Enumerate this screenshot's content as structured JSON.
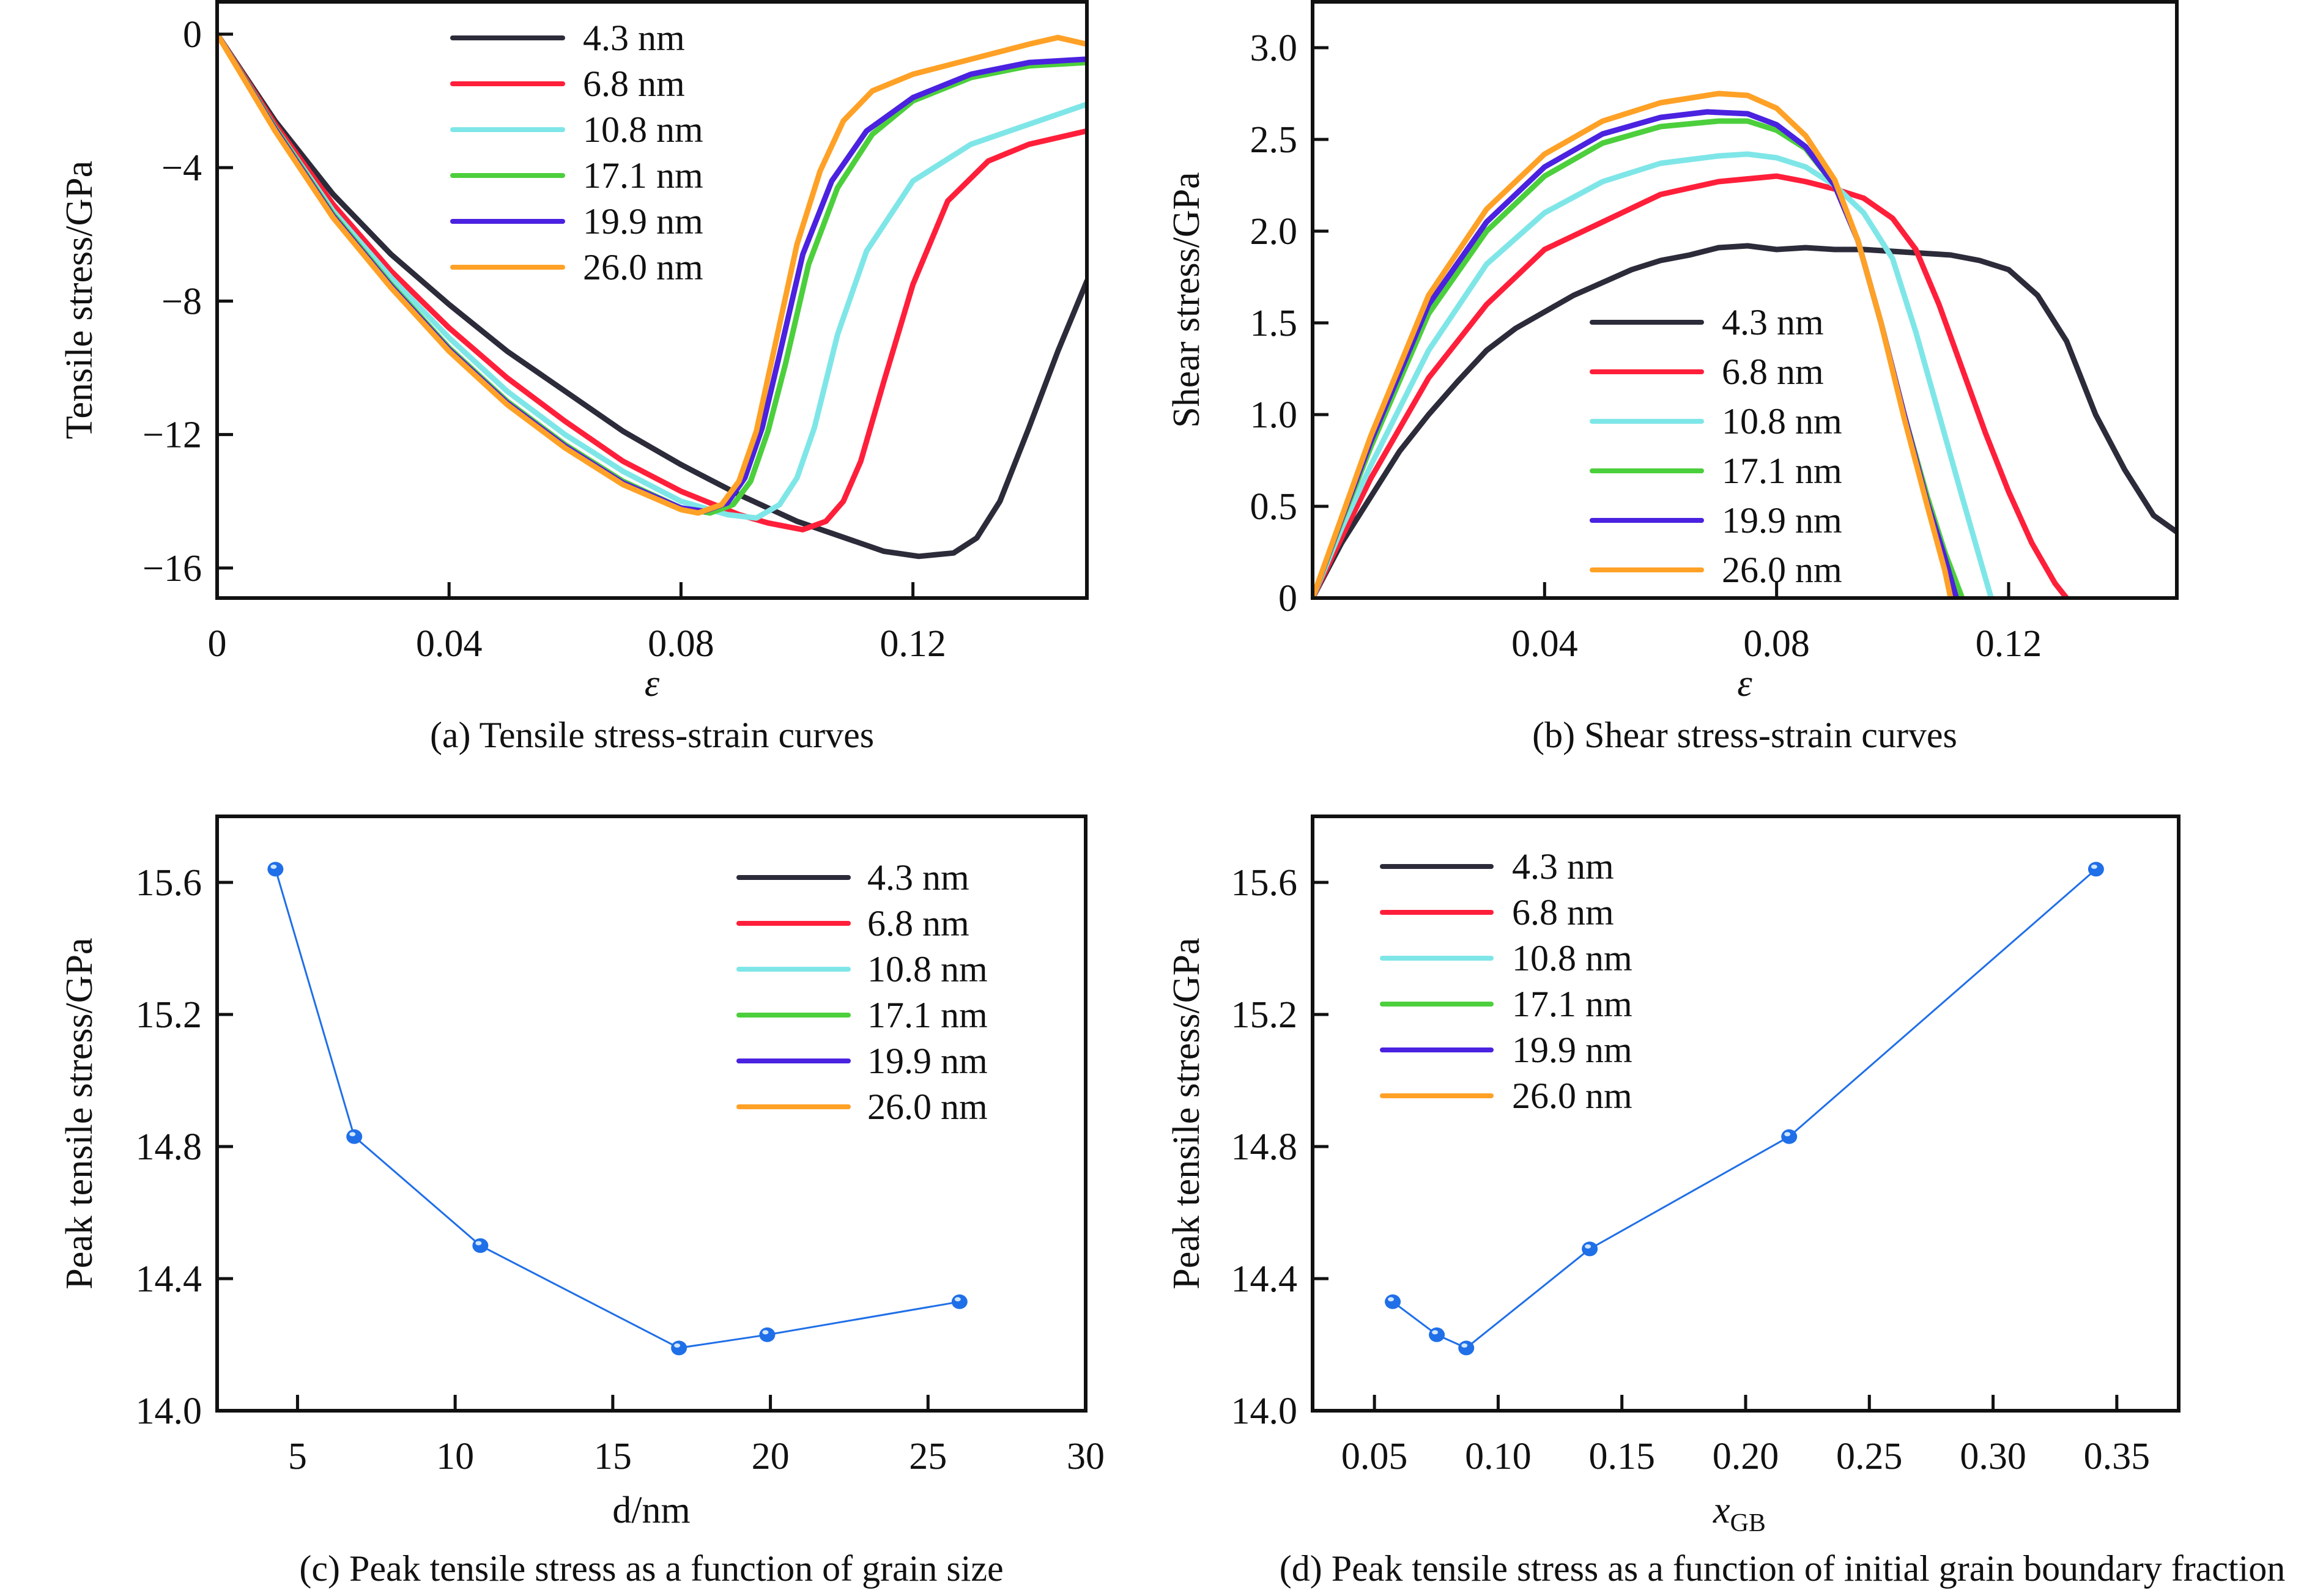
{
  "colors": {
    "4.3 nm": "#2b2b3a",
    "6.8 nm": "#ff1f3a",
    "10.8 nm": "#7fe6e8",
    "17.1 nm": "#4ccf3c",
    "19.9 nm": "#4a22e0",
    "26.0 nm": "#ffa126",
    "marker": "#1f6fe8",
    "axis": "#111111"
  },
  "legend_labels": [
    "4.3 nm",
    "6.8 nm",
    "10.8 nm",
    "17.1 nm",
    "19.9 nm",
    "26.0 nm"
  ],
  "chart_data": [
    {
      "id": "a",
      "type": "line",
      "title": "",
      "caption": "(a) Tensile stress-strain curves",
      "xlabel": "ε",
      "ylabel": "Tensile stress/GPa",
      "xlim": [
        0,
        0.15
      ],
      "ylim": [
        -16.9,
        0.97
      ],
      "xticks": [
        0,
        0.04,
        0.08,
        0.12
      ],
      "xtick_labels": [
        "0",
        "0.04",
        "0.08",
        "0.12"
      ],
      "yticks": [
        0,
        -4,
        -8,
        -12,
        -16
      ],
      "ytick_labels": [
        "0",
        "−4",
        "−8",
        "−12",
        "−16"
      ],
      "grid": false,
      "legend_position": "top-center",
      "series": [
        {
          "name": "4.3 nm",
          "x": [
            0,
            0.01,
            0.02,
            0.03,
            0.04,
            0.05,
            0.06,
            0.07,
            0.08,
            0.09,
            0.1,
            0.11,
            0.115,
            0.121,
            0.127,
            0.131,
            0.135,
            0.14,
            0.145,
            0.15
          ],
          "y": [
            0,
            -2.6,
            -4.8,
            -6.6,
            -8.1,
            -9.5,
            -10.7,
            -11.9,
            -12.9,
            -13.8,
            -14.6,
            -15.2,
            -15.5,
            -15.65,
            -15.55,
            -15.1,
            -14.0,
            -11.8,
            -9.5,
            -7.4
          ]
        },
        {
          "name": "6.8 nm",
          "x": [
            0,
            0.01,
            0.02,
            0.03,
            0.04,
            0.05,
            0.06,
            0.07,
            0.08,
            0.09,
            0.095,
            0.101,
            0.105,
            0.108,
            0.111,
            0.115,
            0.12,
            0.126,
            0.133,
            0.14,
            0.15
          ],
          "y": [
            0,
            -2.7,
            -5.1,
            -7.1,
            -8.8,
            -10.3,
            -11.6,
            -12.8,
            -13.7,
            -14.4,
            -14.65,
            -14.85,
            -14.6,
            -14.0,
            -12.8,
            -10.4,
            -7.5,
            -5.0,
            -3.8,
            -3.3,
            -2.9
          ]
        },
        {
          "name": "10.8 nm",
          "x": [
            0,
            0.01,
            0.02,
            0.03,
            0.04,
            0.05,
            0.06,
            0.07,
            0.08,
            0.088,
            0.093,
            0.097,
            0.1,
            0.103,
            0.107,
            0.112,
            0.12,
            0.13,
            0.14,
            0.15
          ],
          "y": [
            0,
            -2.8,
            -5.3,
            -7.3,
            -9.1,
            -10.7,
            -12.0,
            -13.1,
            -14.0,
            -14.4,
            -14.5,
            -14.1,
            -13.3,
            -11.8,
            -9.0,
            -6.5,
            -4.4,
            -3.3,
            -2.7,
            -2.1
          ]
        },
        {
          "name": "17.1 nm",
          "x": [
            0,
            0.01,
            0.02,
            0.03,
            0.04,
            0.05,
            0.06,
            0.07,
            0.08,
            0.085,
            0.089,
            0.092,
            0.095,
            0.098,
            0.102,
            0.107,
            0.113,
            0.12,
            0.13,
            0.14,
            0.15
          ],
          "y": [
            0,
            -2.8,
            -5.4,
            -7.5,
            -9.4,
            -11.0,
            -12.3,
            -13.4,
            -14.2,
            -14.35,
            -14.1,
            -13.4,
            -11.9,
            -9.9,
            -6.9,
            -4.6,
            -3.0,
            -2.0,
            -1.3,
            -0.95,
            -0.85
          ]
        },
        {
          "name": "19.9 nm",
          "x": [
            0,
            0.01,
            0.02,
            0.03,
            0.04,
            0.05,
            0.06,
            0.07,
            0.08,
            0.084,
            0.088,
            0.091,
            0.094,
            0.097,
            0.101,
            0.106,
            0.112,
            0.12,
            0.13,
            0.14,
            0.15
          ],
          "y": [
            0,
            -2.85,
            -5.45,
            -7.55,
            -9.45,
            -11.05,
            -12.35,
            -13.45,
            -14.2,
            -14.3,
            -14.05,
            -13.3,
            -11.8,
            -9.6,
            -6.6,
            -4.4,
            -2.9,
            -1.9,
            -1.2,
            -0.85,
            -0.75
          ]
        },
        {
          "name": "26.0 nm",
          "x": [
            0,
            0.01,
            0.02,
            0.03,
            0.04,
            0.05,
            0.06,
            0.07,
            0.08,
            0.083,
            0.087,
            0.09,
            0.093,
            0.096,
            0.1,
            0.104,
            0.108,
            0.113,
            0.12,
            0.13,
            0.14,
            0.145,
            0.15
          ],
          "y": [
            0,
            -2.9,
            -5.5,
            -7.6,
            -9.5,
            -11.1,
            -12.4,
            -13.5,
            -14.25,
            -14.35,
            -14.1,
            -13.4,
            -11.9,
            -9.5,
            -6.3,
            -4.1,
            -2.6,
            -1.7,
            -1.2,
            -0.75,
            -0.3,
            -0.1,
            -0.3
          ]
        }
      ]
    },
    {
      "id": "b",
      "type": "line",
      "title": "",
      "caption": "(b) Shear stress-strain curves",
      "xlabel": "ε",
      "ylabel": "Shear stress/GPa",
      "xlim": [
        0,
        0.149
      ],
      "ylim": [
        0,
        3.25
      ],
      "xticks": [
        0.04,
        0.08,
        0.12
      ],
      "xtick_labels": [
        "0.04",
        "0.08",
        "0.12"
      ],
      "yticks": [
        0,
        0.5,
        1.0,
        1.5,
        2.0,
        2.5,
        3.0
      ],
      "ytick_labels": [
        "0",
        "0.5",
        "1.0",
        "1.5",
        "2.0",
        "2.5",
        "3.0"
      ],
      "grid": false,
      "legend_position": "center",
      "series": [
        {
          "name": "4.3 nm",
          "x": [
            0,
            0.005,
            0.01,
            0.015,
            0.02,
            0.025,
            0.03,
            0.035,
            0.04,
            0.045,
            0.05,
            0.055,
            0.06,
            0.065,
            0.07,
            0.075,
            0.08,
            0.085,
            0.09,
            0.095,
            0.1,
            0.105,
            0.11,
            0.115,
            0.12,
            0.125,
            0.13,
            0.135,
            0.14,
            0.145,
            0.149
          ],
          "y": [
            0,
            0.3,
            0.55,
            0.8,
            1.0,
            1.18,
            1.35,
            1.47,
            1.56,
            1.65,
            1.72,
            1.79,
            1.84,
            1.87,
            1.91,
            1.92,
            1.9,
            1.91,
            1.9,
            1.9,
            1.89,
            1.88,
            1.87,
            1.84,
            1.79,
            1.65,
            1.4,
            1.0,
            0.7,
            0.45,
            0.36
          ]
        },
        {
          "name": "6.8 nm",
          "x": [
            0,
            0.005,
            0.01,
            0.02,
            0.03,
            0.04,
            0.05,
            0.06,
            0.07,
            0.08,
            0.085,
            0.09,
            0.095,
            0.1,
            0.104,
            0.108,
            0.112,
            0.116,
            0.12,
            0.124,
            0.128,
            0.13
          ],
          "y": [
            0,
            0.33,
            0.65,
            1.2,
            1.6,
            1.9,
            2.05,
            2.2,
            2.27,
            2.3,
            2.27,
            2.23,
            2.18,
            2.07,
            1.9,
            1.6,
            1.25,
            0.9,
            0.58,
            0.3,
            0.08,
            0.0
          ]
        },
        {
          "name": "10.8 nm",
          "x": [
            0,
            0.005,
            0.01,
            0.02,
            0.03,
            0.04,
            0.05,
            0.06,
            0.07,
            0.075,
            0.08,
            0.085,
            0.09,
            0.095,
            0.1,
            0.104,
            0.108,
            0.112,
            0.117
          ],
          "y": [
            0,
            0.38,
            0.72,
            1.35,
            1.82,
            2.1,
            2.27,
            2.37,
            2.41,
            2.42,
            2.4,
            2.35,
            2.25,
            2.1,
            1.85,
            1.45,
            1.0,
            0.55,
            0.0
          ]
        },
        {
          "name": "17.1 nm",
          "x": [
            0,
            0.005,
            0.01,
            0.02,
            0.03,
            0.04,
            0.05,
            0.06,
            0.07,
            0.075,
            0.08,
            0.085,
            0.09,
            0.094,
            0.098,
            0.102,
            0.106,
            0.109,
            0.112
          ],
          "y": [
            0,
            0.42,
            0.82,
            1.55,
            2.0,
            2.3,
            2.48,
            2.57,
            2.6,
            2.6,
            2.55,
            2.45,
            2.25,
            1.95,
            1.5,
            1.0,
            0.55,
            0.25,
            0.0
          ]
        },
        {
          "name": "19.9 nm",
          "x": [
            0,
            0.005,
            0.01,
            0.02,
            0.03,
            0.04,
            0.05,
            0.06,
            0.068,
            0.075,
            0.08,
            0.085,
            0.09,
            0.094,
            0.098,
            0.102,
            0.106,
            0.109,
            0.111
          ],
          "y": [
            0,
            0.43,
            0.85,
            1.6,
            2.05,
            2.35,
            2.53,
            2.62,
            2.65,
            2.64,
            2.58,
            2.46,
            2.25,
            1.95,
            1.5,
            1.0,
            0.52,
            0.22,
            0.0
          ]
        },
        {
          "name": "26.0 nm",
          "x": [
            0,
            0.005,
            0.01,
            0.02,
            0.03,
            0.04,
            0.05,
            0.06,
            0.07,
            0.075,
            0.08,
            0.085,
            0.09,
            0.094,
            0.098,
            0.102,
            0.106,
            0.109,
            0.11
          ],
          "y": [
            0,
            0.44,
            0.88,
            1.65,
            2.12,
            2.42,
            2.6,
            2.7,
            2.75,
            2.74,
            2.67,
            2.52,
            2.28,
            1.95,
            1.5,
            0.98,
            0.5,
            0.15,
            0.0
          ]
        }
      ]
    },
    {
      "id": "c",
      "type": "line",
      "title": "",
      "caption": "(c) Peak tensile stress as a function of grain size",
      "xlabel": "d/nm",
      "ylabel": "Peak tensile stress/GPa",
      "xlim": [
        2.45,
        30
      ],
      "ylim": [
        14.0,
        15.8
      ],
      "xticks": [
        5,
        10,
        15,
        20,
        25,
        30
      ],
      "xtick_labels": [
        "5",
        "10",
        "15",
        "20",
        "25",
        "30"
      ],
      "yticks": [
        14.0,
        14.4,
        14.8,
        15.2,
        15.6
      ],
      "ytick_labels": [
        "14.0",
        "14.4",
        "14.8",
        "15.2",
        "15.6"
      ],
      "grid": false,
      "legend_position": "top-right",
      "series": [
        {
          "name": "Peak tensile stress",
          "x": [
            4.3,
            6.8,
            10.8,
            17.1,
            19.9,
            26.0
          ],
          "y": [
            15.64,
            14.83,
            14.5,
            14.19,
            14.23,
            14.33
          ]
        }
      ]
    },
    {
      "id": "d",
      "type": "line",
      "title": "",
      "caption": "(d) Peak tensile stress as a function of initial grain boundary fraction",
      "xlabel": "x",
      "xlabel_sub": "GB",
      "ylabel": "Peak tensile stress/GPa",
      "xlim": [
        0.025,
        0.375
      ],
      "ylim": [
        14.0,
        15.8
      ],
      "xticks": [
        0.05,
        0.1,
        0.15,
        0.2,
        0.25,
        0.3,
        0.35
      ],
      "xtick_labels": [
        "0.05",
        "0.10",
        "0.15",
        "0.20",
        "0.25",
        "0.30",
        "0.35"
      ],
      "yticks": [
        14.0,
        14.4,
        14.8,
        15.2,
        15.6
      ],
      "ytick_labels": [
        "14.0",
        "14.4",
        "14.8",
        "15.2",
        "15.6"
      ],
      "grid": false,
      "legend_position": "top-left",
      "series": [
        {
          "name": "Peak tensile stress",
          "x": [
            0.0574,
            0.0752,
            0.0871,
            0.137,
            0.2176,
            0.3416
          ],
          "y": [
            14.33,
            14.23,
            14.19,
            14.49,
            14.83,
            15.64
          ]
        }
      ]
    }
  ]
}
